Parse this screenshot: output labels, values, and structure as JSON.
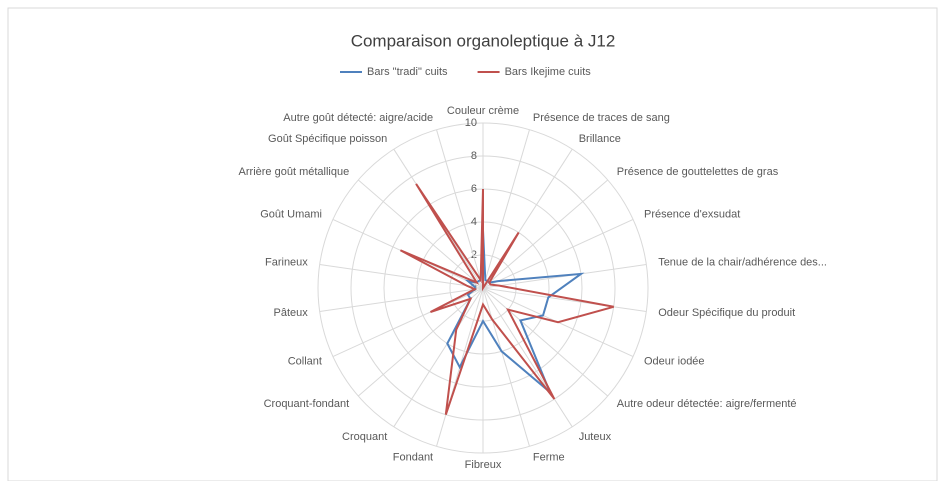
{
  "chart_data": {
    "type": "radar",
    "title": "Comparaison organoleptique à J12",
    "categories": [
      "Couleur crème",
      "Présence de traces de sang",
      "Brillance",
      "Présence de gouttelettes de gras",
      "Présence d'exsudat",
      "Tenue de la chair/adhérence des...",
      "Odeur Spécifique du produit",
      "Odeur iodée",
      "Autre odeur détectée: aigre/fermenté",
      "Juteux",
      "Ferme",
      "Fibreux",
      "Fondant",
      "Croquant",
      "Croquant-fondant",
      "Collant",
      "Pâteux",
      "Farineux",
      "Goût Umami",
      "Arrière goût métallique",
      "Goût Spécifique poisson",
      "Autre goût détecté: aigre/acide"
    ],
    "series": [
      {
        "name": "Bars \"tradi\" cuits",
        "color": "#4f81bd",
        "values": [
          3.5,
          0.5,
          0.5,
          0.5,
          1,
          6,
          4,
          4,
          3,
          7.5,
          4,
          2,
          5,
          4,
          1,
          1,
          0.5,
          0.5,
          1,
          0.5,
          0.5,
          0.5
        ]
      },
      {
        "name": "Bars Ikejime cuits",
        "color": "#c0504d",
        "values": [
          6,
          0,
          4,
          0.5,
          0.5,
          1,
          8,
          5,
          2,
          8,
          2,
          1,
          8,
          3,
          1,
          3.5,
          0.5,
          1,
          5.5,
          0.5,
          7.5,
          0.5
        ]
      }
    ],
    "ylim": [
      0,
      10
    ],
    "yticks": [
      0,
      2,
      4,
      6,
      8,
      10
    ],
    "grid": true,
    "legend": "top"
  }
}
